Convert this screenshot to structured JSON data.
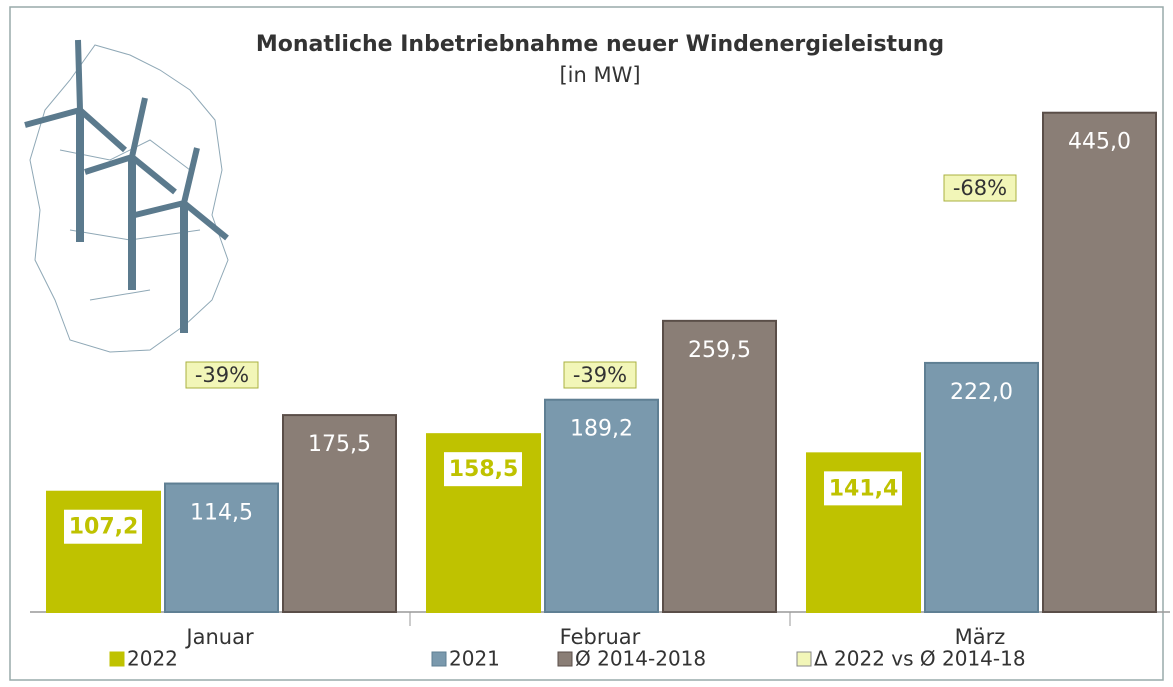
{
  "chart_data": {
    "type": "bar",
    "title": "Monatliche Inbetriebnahme neuer Windenergieleistung",
    "subtitle": "[in MW]",
    "categories": [
      "Januar",
      "Februar",
      "März"
    ],
    "ylim": [
      0,
      500
    ],
    "series": [
      {
        "name": "2022",
        "color": "#bfc200",
        "values": [
          107.2,
          158.5,
          141.4
        ],
        "value_labels": [
          "107,2",
          "158,5",
          "141,4"
        ]
      },
      {
        "name": "2021",
        "color": "#7a99ad",
        "values": [
          114.5,
          189.2,
          222.0
        ],
        "value_labels": [
          "114,5",
          "189,2",
          "222,0"
        ]
      },
      {
        "name": "Ø 2014-2018",
        "color": "#8a7e76",
        "values": [
          175.5,
          259.5,
          445.0
        ],
        "value_labels": [
          "175,5",
          "259,5",
          "445,0"
        ]
      }
    ],
    "annotations": {
      "name": "Δ 2022 vs Ø 2014-18",
      "color": "#f2f6b8",
      "values": [
        -39,
        -39,
        -68
      ],
      "value_labels": [
        "-39%",
        "-39%",
        "-68%"
      ]
    }
  }
}
